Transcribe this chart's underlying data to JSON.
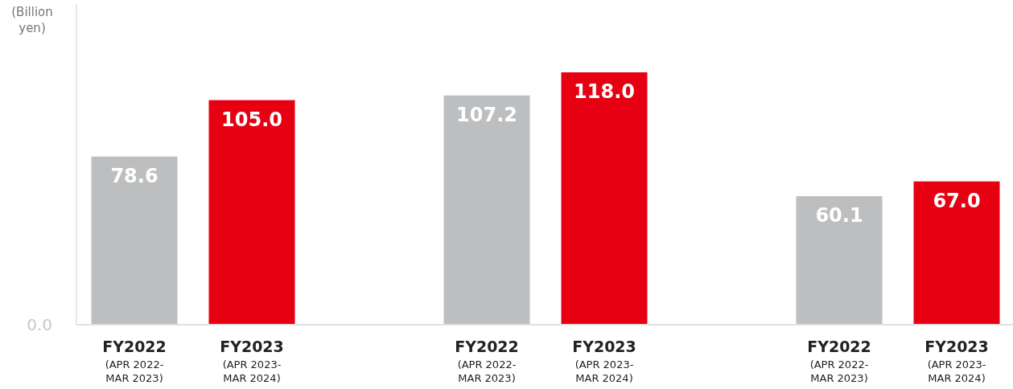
{
  "chart_data": {
    "type": "bar",
    "ylabel": "(Billion yen)",
    "categories": [
      "FY2022\n(APR 2022-\nMAR 2023)",
      "FY2023\n(APR 2023-\nMAR 2024)",
      "FY2022\n(APR 2022-\nMAR 2023)",
      "FY2023\n(APR 2023-\nMAR 2024)",
      "FY2022\n(APR 2022-\nMAR 2023)",
      "FY2023\n(APR 2023-\nMAR 2024)"
    ],
    "values": [
      78.6,
      105.0,
      107.2,
      118.0,
      60.1,
      67.0
    ],
    "value_labels": [
      "78.6",
      "105.0",
      "107.2",
      "118.0",
      "60.1",
      "67.0"
    ],
    "colors": [
      "#bcbec0",
      "#e60012",
      "#bcbec0",
      "#e60012",
      "#bcbec0",
      "#e60012"
    ],
    "annotations": [
      "0.0"
    ]
  }
}
